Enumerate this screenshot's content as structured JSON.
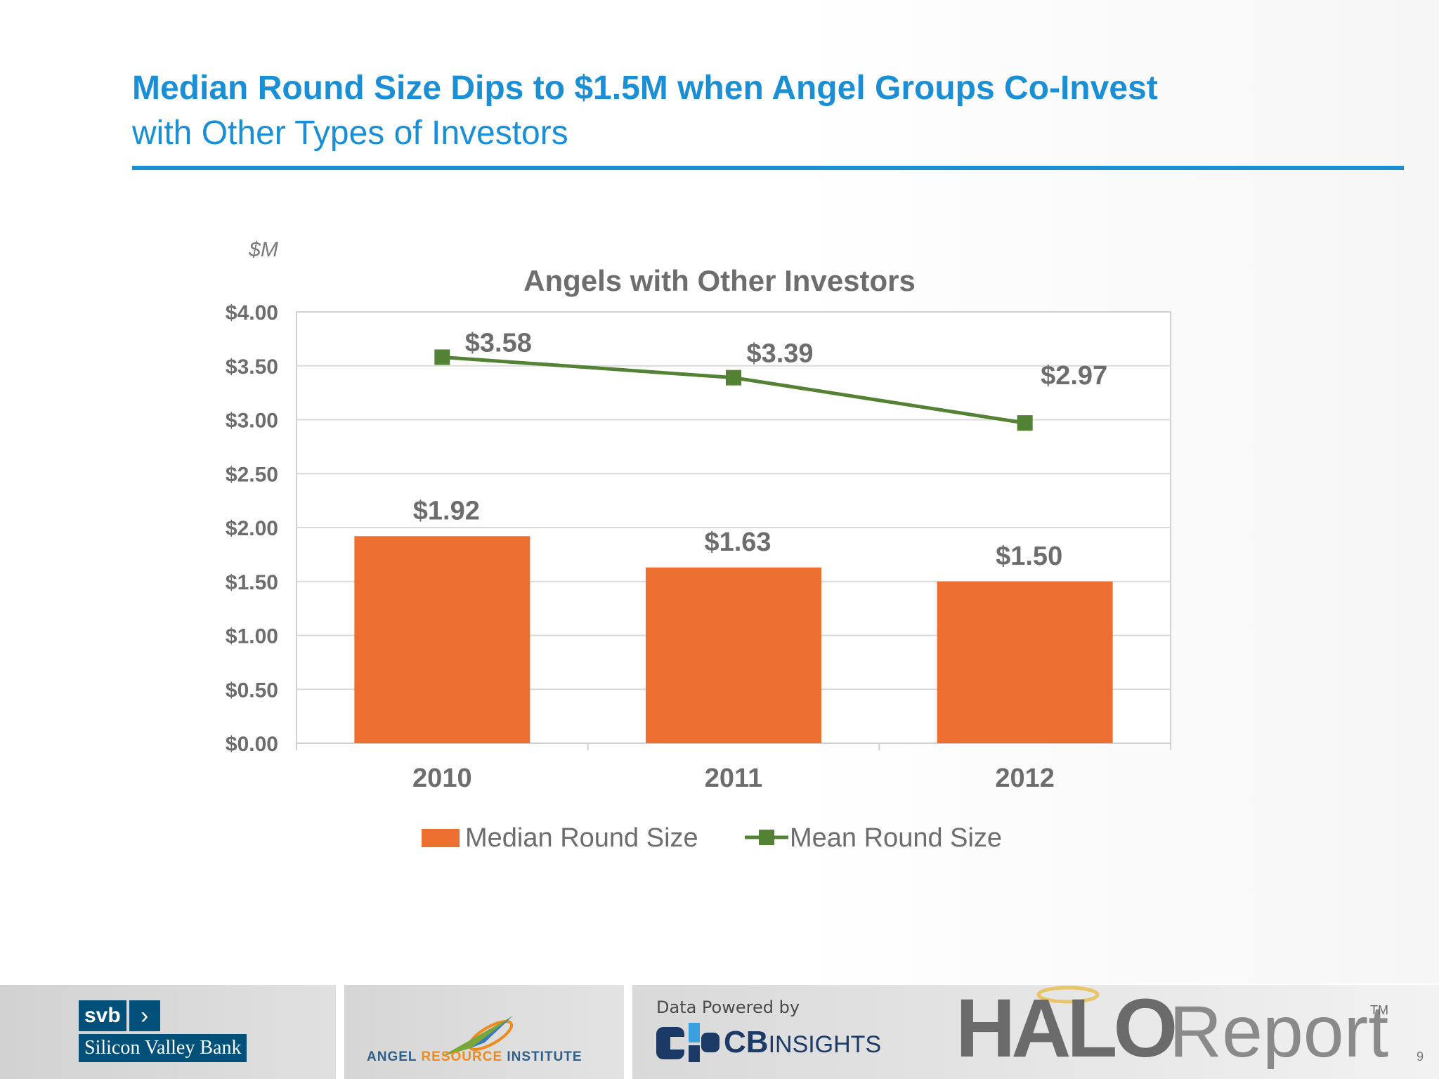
{
  "slide": {
    "title": "Median Round Size Dips to $1.5M when Angel Groups Co-Invest",
    "subtitle": "with Other Types of Investors",
    "page_number": "9",
    "accent_color": "#1a8fd6"
  },
  "chart_data": {
    "type": "bar",
    "title": "Angels with Other Investors",
    "unit_label": "$M",
    "categories": [
      "2010",
      "2011",
      "2012"
    ],
    "ylim": [
      0,
      4
    ],
    "yticks": [
      "$0.00",
      "$0.50",
      "$1.00",
      "$1.50",
      "$2.00",
      "$2.50",
      "$3.00",
      "$3.50",
      "$4.00"
    ],
    "grid": true,
    "legend_position": "bottom",
    "series": [
      {
        "name": "Median Round Size",
        "type": "bar",
        "values": [
          1.92,
          1.63,
          1.5
        ],
        "labels": [
          "$1.92",
          "$1.63",
          "$1.50"
        ],
        "color": "#ec6f30"
      },
      {
        "name": "Mean Round Size",
        "type": "line",
        "values": [
          3.58,
          3.39,
          2.97
        ],
        "labels": [
          "$3.58",
          "$3.39",
          "$2.97"
        ],
        "color": "#548235"
      }
    ]
  },
  "footer": {
    "svb_word": "svb",
    "svb_chevron": "›",
    "svb_bank": "Silicon Valley Bank",
    "ari": {
      "part1": "ANGEL ",
      "part2": "RESOURCE",
      "part3": " INSTITUTE"
    },
    "cb_caption": "Data Powered by",
    "cb_name": "CB",
    "cb_name_light": "INSIGHTS",
    "halo_bold": "HALO",
    "halo_light": "Report",
    "halo_tm": "TM",
    "logo_icons": [
      "svb-logo",
      "angel-resource-institute-logo",
      "cb-insights-logo",
      "halo-report-logo"
    ]
  }
}
